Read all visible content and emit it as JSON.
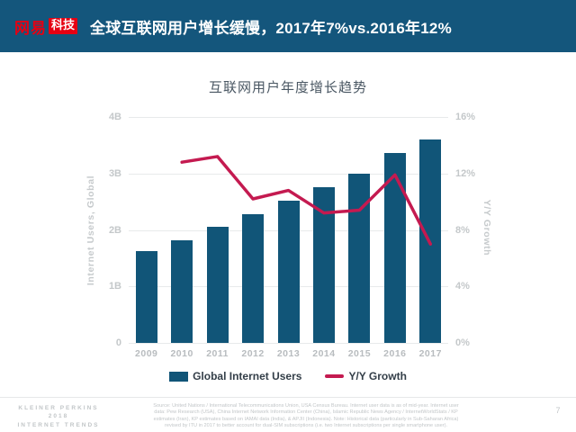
{
  "header": {
    "logo": {
      "brand": "网易",
      "badge": "科技"
    },
    "title": "全球互联网用户增长缓慢，2017年7%vs.2016年12%"
  },
  "chart_data": {
    "type": "bar+line",
    "title": "互联网用户年度增长趋势",
    "categories": [
      "2009",
      "2010",
      "2011",
      "2012",
      "2013",
      "2014",
      "2015",
      "2016",
      "2017"
    ],
    "series": [
      {
        "name": "Global Internet Users",
        "type": "bar",
        "axis": "left",
        "unit": "billions",
        "values": [
          1.62,
          1.82,
          2.06,
          2.28,
          2.52,
          2.75,
          3.0,
          3.37,
          3.6
        ]
      },
      {
        "name": "Y/Y Growth",
        "type": "line",
        "axis": "right",
        "unit": "percent",
        "values": [
          null,
          12.8,
          13.2,
          10.2,
          10.8,
          9.2,
          9.4,
          11.9,
          7.0
        ]
      }
    ],
    "left_axis": {
      "title": "Internet Users, Global",
      "ticks": [
        "0",
        "1B",
        "2B",
        "3B",
        "4B"
      ],
      "range": [
        0,
        4
      ]
    },
    "right_axis": {
      "title": "Y/Y Growth",
      "ticks": [
        "0%",
        "4%",
        "8%",
        "12%",
        "16%"
      ],
      "range": [
        0,
        16
      ]
    },
    "grid": true,
    "legend_position": "bottom"
  },
  "footer": {
    "source": "Source: United Nations / International Telecommunications Union, USA Census Bureau. Internet user data is as of mid-year. Internet user\ndata: Pew Research (USA), China Internet Network Information Center (China), Islamic Republic News Agency / InternetWorldStats / KP\nestimates (Iran), KP estimates based on IAMAI data (India), & APJII (Indonesia).  Note: Historical data (particularly in Sub-Saharan Africa)\nrevised by ITU in 2017 to better account for dual-SIM subscriptions (i.e. two Internet subscriptions per single smartphone user).",
    "brand_lines": [
      "KLEINER PERKINS",
      "2018",
      "INTERNET TRENDS"
    ],
    "page_number": "7"
  },
  "colors": {
    "header_bg": "#14567C",
    "logo_red": "#E60012",
    "bar": "#115578",
    "line": "#C41A50",
    "grid": "#E8EAEB",
    "tick": "#C4C8CA",
    "xtick": "#B8BCBF",
    "axis_title": "#C6CACC",
    "chart_title": "#4A5763",
    "legend_text": "#333E48",
    "rule": "#E6E8E9",
    "footer_text": "#C2C6C8"
  }
}
